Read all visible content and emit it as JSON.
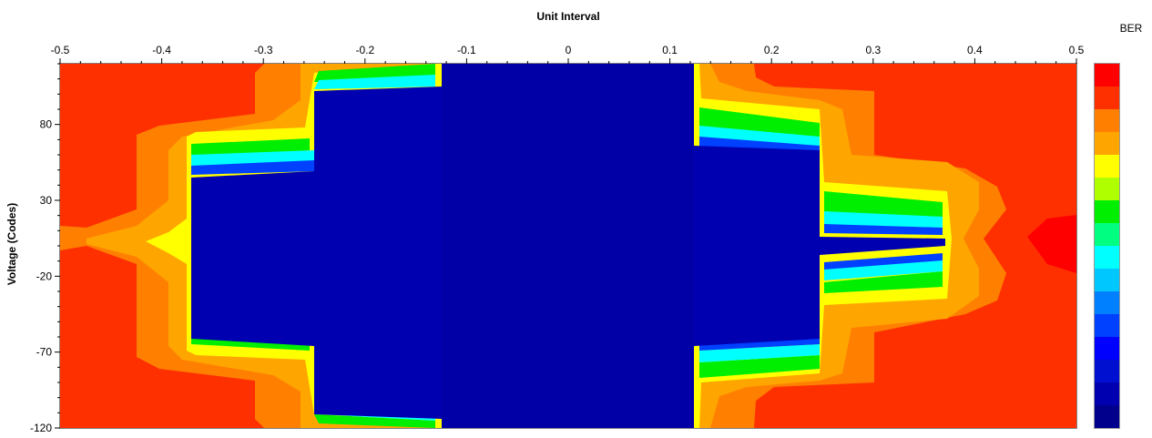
{
  "chart_data": {
    "type": "heatmap",
    "title": "Unit Interval",
    "xlabel": "Unit Interval",
    "ylabel": "Voltage (Codes)",
    "colorbar_label": "BER",
    "xlim": [
      -0.5,
      0.5
    ],
    "ylim": [
      -120,
      120
    ],
    "x_ticks": [
      "-0.5",
      "-0.4",
      "-0.3",
      "-0.2",
      "-0.1",
      "0",
      "0.1",
      "0.2",
      "0.3",
      "0.4",
      "0.5"
    ],
    "y_ticks": [
      "80",
      "30",
      "-20",
      "-70",
      "-120"
    ],
    "colorbar_levels": [
      "#ff0000",
      "#ff3000",
      "#ff8000",
      "#ffa500",
      "#ffff00",
      "#b0ff00",
      "#00ee00",
      "#00ff80",
      "#00ffff",
      "#00c8ff",
      "#0080ff",
      "#0040ff",
      "#0000ff",
      "#0010d0",
      "#0000b0",
      "#00008c"
    ],
    "eye_opening": {
      "inner_ui": [
        -0.125,
        0.125
      ],
      "levels": [
        {
          "name": "1",
          "x": [
            -0.37,
            0.37
          ],
          "y": [
            -2,
            2
          ]
        },
        {
          "name": "2",
          "x": [
            -0.37,
            0.37
          ],
          "y": [
            -68,
            12
          ]
        },
        {
          "name": "3",
          "x": [
            -0.25,
            0.25
          ],
          "y": [
            -108,
            82
          ]
        },
        {
          "name": "4",
          "x": [
            -0.125,
            0.125
          ],
          "y": [
            -120,
            120
          ]
        }
      ]
    },
    "grid": false,
    "legend": "colorbar-right"
  }
}
